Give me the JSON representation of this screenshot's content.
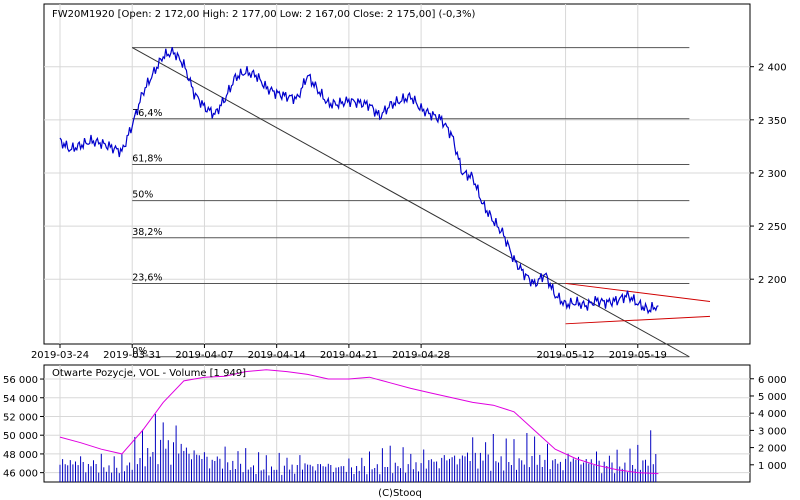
{
  "chart_data": [
    {
      "type": "line",
      "title": "FW20M1920 [Open: 2 172,00  High: 2 177,00  Low: 2 167,00  Close: 2 175,00] (-0,3%)",
      "instrument": "FW20M1920",
      "ohlc": {
        "open": 2172.0,
        "high": 2177.0,
        "low": 2167.0,
        "close": 2175.0,
        "change_pct": "-0,3%"
      },
      "x_tick_labels": [
        "2019-03-24",
        "2019-03-31",
        "2019-04-07",
        "2019-04-14",
        "2019-04-21",
        "2019-04-28",
        "2019-05-12",
        "2019-05-19"
      ],
      "x_tick_dates": [
        "2019-03-24",
        "2019-03-31",
        "2019-04-07",
        "2019-04-14",
        "2019-04-21",
        "2019-04-28",
        "2019-05-12",
        "2019-05-19"
      ],
      "y_tick_labels": [
        "2 200",
        "2 250",
        "2 300",
        "2 350",
        "2 400"
      ],
      "y_tick_values": [
        2200,
        2250,
        2300,
        2350,
        2400
      ],
      "ylim": [
        2139,
        2459
      ],
      "xlim": [
        "2019-03-24",
        "2019-05-26"
      ],
      "grid": true,
      "series": [
        {
          "values_x": [
            "2019-03-24",
            "2019-03-25",
            "2019-03-26",
            "2019-03-27",
            "2019-03-28",
            "2019-03-29",
            "2019-03-30",
            "2019-03-31",
            "2019-04-01",
            "2019-04-02",
            "2019-04-03",
            "2019-04-04",
            "2019-04-05",
            "2019-04-06",
            "2019-04-07",
            "2019-04-08",
            "2019-04-09",
            "2019-04-10",
            "2019-04-11",
            "2019-04-12",
            "2019-04-13",
            "2019-04-14",
            "2019-04-15",
            "2019-04-16",
            "2019-04-17",
            "2019-04-18",
            "2019-04-19",
            "2019-04-20",
            "2019-04-21",
            "2019-04-22",
            "2019-04-23",
            "2019-04-24",
            "2019-04-25",
            "2019-04-26",
            "2019-04-27",
            "2019-04-28",
            "2019-04-29",
            "2019-04-30",
            "2019-05-01",
            "2019-05-02",
            "2019-05-03",
            "2019-05-04",
            "2019-05-05",
            "2019-05-06",
            "2019-05-07",
            "2019-05-08",
            "2019-05-09",
            "2019-05-10",
            "2019-05-11",
            "2019-05-12",
            "2019-05-13",
            "2019-05-14",
            "2019-05-15",
            "2019-05-16",
            "2019-05-17",
            "2019-05-18",
            "2019-05-19",
            "2019-05-20",
            "2019-05-21"
          ],
          "values_y": [
            2330,
            2322,
            2326,
            2330,
            2328,
            2324,
            2320,
            2345,
            2375,
            2393,
            2410,
            2414,
            2402,
            2375,
            2362,
            2355,
            2370,
            2390,
            2395,
            2392,
            2380,
            2375,
            2372,
            2370,
            2392,
            2378,
            2365,
            2365,
            2368,
            2366,
            2364,
            2353,
            2364,
            2368,
            2372,
            2360,
            2355,
            2350,
            2335,
            2300,
            2296,
            2270,
            2255,
            2242,
            2218,
            2205,
            2195,
            2205,
            2185,
            2176,
            2178,
            2175,
            2180,
            2178,
            2180,
            2185,
            2177,
            2171,
            2175
          ]
        }
      ],
      "fibonacci_levels": [
        {
          "label": "76,4%",
          "value": 2351
        },
        {
          "label": "61,8%",
          "value": 2308
        },
        {
          "label": "50%",
          "value": 2274
        },
        {
          "label": "38,2%",
          "value": 2239
        },
        {
          "label": "23,6%",
          "value": 2196
        },
        {
          "label": "0%",
          "value": 2127
        }
      ],
      "fibonacci_top_value": 2418,
      "trend_lines": [
        {
          "color": "#333333",
          "from": [
            "2019-03-31",
            2418
          ],
          "to": [
            "2019-05-24",
            2127
          ]
        },
        {
          "color": "#d00000",
          "from": [
            "2019-05-12",
            2196
          ],
          "to": [
            "2019-05-26",
            2179
          ]
        },
        {
          "color": "#d00000",
          "from": [
            "2019-05-12",
            2158
          ],
          "to": [
            "2019-05-26",
            2165
          ]
        }
      ]
    },
    {
      "type": "bar",
      "title": "Otwarte Pozycje, VOL - Volume [1 949]",
      "left_tick_labels": [
        "46 000",
        "48 000",
        "50 000",
        "52 000",
        "54 000",
        "56 000"
      ],
      "left_tick_values": [
        46000,
        48000,
        50000,
        52000,
        54000,
        56000
      ],
      "left_ylim": [
        45000,
        57500
      ],
      "right_tick_labels": [
        "1 000",
        "2 000",
        "3 000",
        "4 000",
        "5 000",
        "6 000"
      ],
      "right_tick_values": [
        1000,
        2000,
        3000,
        4000,
        5000,
        6000
      ],
      "right_ylim": [
        0,
        6800
      ],
      "grid": true,
      "series": [
        {
          "name": "Otwarte Pozycje",
          "color": "#e000e0",
          "values_x": [
            "2019-03-24",
            "2019-03-26",
            "2019-03-28",
            "2019-03-30",
            "2019-04-01",
            "2019-04-03",
            "2019-04-05",
            "2019-04-07",
            "2019-04-09",
            "2019-04-11",
            "2019-04-13",
            "2019-04-15",
            "2019-04-17",
            "2019-04-19",
            "2019-04-21",
            "2019-04-23",
            "2019-04-25",
            "2019-04-27",
            "2019-04-29",
            "2019-05-01",
            "2019-05-03",
            "2019-05-05",
            "2019-05-07",
            "2019-05-09",
            "2019-05-11",
            "2019-05-13",
            "2019-05-15",
            "2019-05-17",
            "2019-05-19",
            "2019-05-21"
          ],
          "values_y": [
            49800,
            49200,
            48500,
            48000,
            50500,
            53500,
            55800,
            56200,
            56300,
            56800,
            57000,
            56800,
            56500,
            56000,
            56000,
            56200,
            55600,
            55000,
            54500,
            54000,
            53500,
            53200,
            52500,
            50500,
            48500,
            47500,
            46800,
            46300,
            46000,
            45900
          ]
        },
        {
          "name": "VOL",
          "color": "#0000c0",
          "values_x": [
            "2019-03-24",
            "2019-03-26",
            "2019-03-28",
            "2019-03-30",
            "2019-04-01",
            "2019-04-03",
            "2019-04-05",
            "2019-04-07",
            "2019-04-09",
            "2019-04-11",
            "2019-04-13",
            "2019-04-15",
            "2019-04-17",
            "2019-04-19",
            "2019-04-21",
            "2019-04-23",
            "2019-04-25",
            "2019-04-27",
            "2019-04-29",
            "2019-05-01",
            "2019-05-03",
            "2019-05-05",
            "2019-05-07",
            "2019-05-09",
            "2019-05-11",
            "2019-05-13",
            "2019-05-15",
            "2019-05-17",
            "2019-05-19",
            "2019-05-21"
          ],
          "values_y": [
            1400,
            1200,
            1000,
            900,
            1800,
            2600,
            2200,
            1500,
            1300,
            1100,
            900,
            1000,
            1100,
            1000,
            900,
            1000,
            1200,
            1100,
            1300,
            1500,
            1800,
            1600,
            1400,
            1700,
            1200,
            1500,
            1300,
            1100,
            1200,
            1949
          ]
        }
      ],
      "x_tick_labels": [
        "2019-03-24",
        "2019-03-31",
        "2019-04-07",
        "2019-04-14",
        "2019-04-21",
        "2019-04-28",
        "2019-05-12",
        "2019-05-19"
      ]
    }
  ],
  "footer": {
    "credit": "(C)Stooq"
  }
}
